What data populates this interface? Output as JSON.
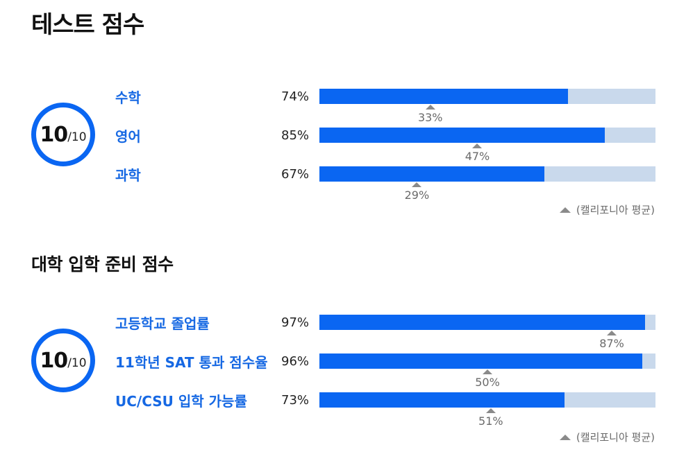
{
  "test_scores": {
    "title": "테스트 점수",
    "score": "10",
    "score_max": "/10",
    "rows": [
      {
        "label": "수학",
        "pct_text": "74%",
        "pct": 74,
        "avg_text": "33%",
        "avg": 33
      },
      {
        "label": "영어",
        "pct_text": "85%",
        "pct": 85,
        "avg_text": "47%",
        "avg": 47
      },
      {
        "label": "과학",
        "pct_text": "67%",
        "pct": 67,
        "avg_text": "29%",
        "avg": 29
      }
    ],
    "legend": "(캘리포니아 평균)"
  },
  "college_readiness": {
    "title": "대학 입학 준비 점수",
    "score": "10",
    "score_max": "/10",
    "rows": [
      {
        "label": "고등학교 졸업률",
        "pct_text": "97%",
        "pct": 97,
        "avg_text": "87%",
        "avg": 87
      },
      {
        "label": "11학년 SAT 통과 점수율",
        "pct_text": "96%",
        "pct": 96,
        "avg_text": "50%",
        "avg": 50
      },
      {
        "label": "UC/CSU 입학 가능률",
        "pct_text": "73%",
        "pct": 73,
        "avg_text": "51%",
        "avg": 51
      }
    ],
    "legend": "(캘리포니아 평균)"
  },
  "colors": {
    "bar_fill": "#0a66f2",
    "bar_track": "#c9d9ec",
    "label": "#1668e3",
    "marker": "#8a8a8a"
  }
}
